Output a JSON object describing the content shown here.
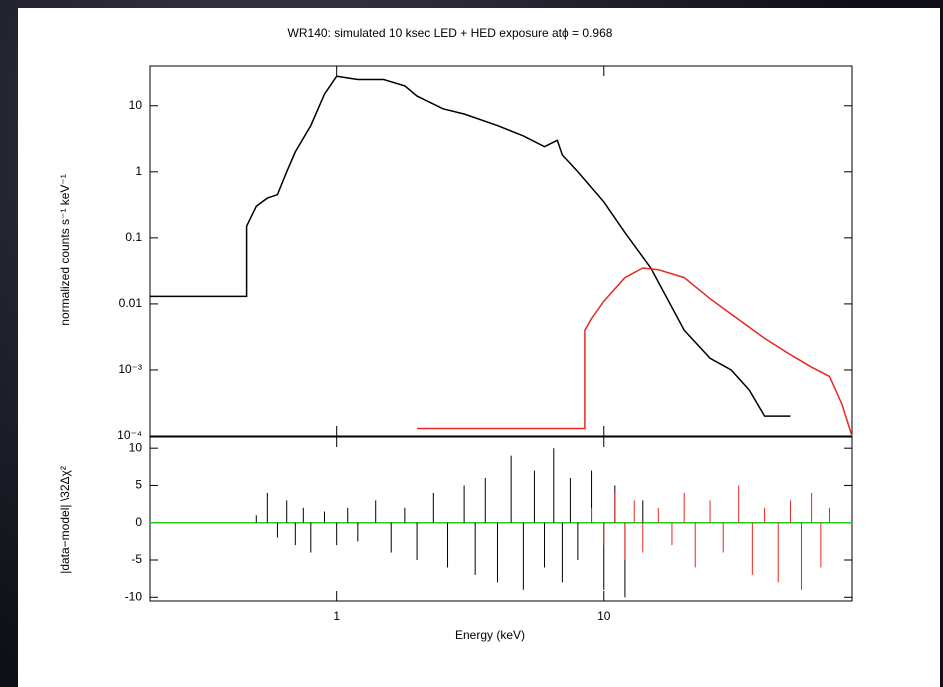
{
  "chart_data": [
    {
      "type": "line",
      "title": "WR140: simulated 10 ksec LED + HED exposure atϕ = 0.968",
      "y_label": "normalized counts s⁻¹ keV⁻¹",
      "xscale": "log",
      "yscale": "log",
      "xlim": [
        0.2,
        85
      ],
      "ylim": [
        0.0001,
        40
      ],
      "yticks": [
        10,
        1,
        0.1,
        0.01,
        {
          "value": 0.001,
          "label": "10⁻³"
        },
        {
          "value": 0.0001,
          "label": "10⁻⁴"
        }
      ],
      "series": [
        {
          "color": "#000000",
          "x": [
            0.2,
            0.46,
            0.46,
            0.5,
            0.55,
            0.6,
            0.65,
            0.7,
            0.8,
            0.9,
            1.0,
            1.2,
            1.5,
            1.8,
            2,
            2.5,
            3,
            4,
            5,
            6,
            6.7,
            7,
            8,
            10,
            12,
            15,
            20,
            25,
            30,
            35,
            40,
            50
          ],
          "values": [
            0.013,
            0.013,
            0.15,
            0.3,
            0.4,
            0.45,
            1,
            2,
            5,
            15,
            28,
            25,
            25,
            20,
            14,
            9,
            7.5,
            5,
            3.5,
            2.4,
            3,
            1.8,
            1,
            0.35,
            0.12,
            0.035,
            0.004,
            0.0015,
            0.001,
            0.0005,
            0.0002,
            0.0002
          ]
        },
        {
          "color": "#e8281e",
          "x": [
            2,
            8.5,
            8.5,
            9,
            10,
            12,
            14,
            16,
            20,
            25,
            30,
            40,
            50,
            60,
            70,
            78,
            85
          ],
          "values": [
            0.00013,
            0.00013,
            0.004,
            0.006,
            0.011,
            0.025,
            0.035,
            0.033,
            0.025,
            0.012,
            0.007,
            0.003,
            0.0017,
            0.0011,
            0.0008,
            0.0003,
            0.0001
          ]
        }
      ]
    },
    {
      "type": "scatter",
      "x_label": "Energy (keV)",
      "y_label": "|data−model| \\32Δχ²",
      "xscale": "log",
      "xlim": [
        0.2,
        85
      ],
      "ylim": [
        -10.5,
        11.5
      ],
      "xticks": [
        1,
        10
      ],
      "yticks": [
        10,
        5,
        0,
        -5,
        -10
      ],
      "hline": {
        "value": 0,
        "color": "#22cc22"
      },
      "series": [
        {
          "color": "#000000",
          "x": [
            0.5,
            0.55,
            0.6,
            0.65,
            0.7,
            0.75,
            0.8,
            0.9,
            1.0,
            1.1,
            1.2,
            1.4,
            1.6,
            1.8,
            2,
            2.3,
            2.6,
            3,
            3.3,
            3.6,
            4,
            4.5,
            5,
            5.5,
            6,
            6.5,
            7,
            7.5,
            8,
            9,
            10,
            11,
            12,
            14
          ],
          "values": [
            1,
            4,
            -2,
            3,
            -3,
            2,
            -4,
            1.5,
            -3,
            2,
            -2.5,
            3,
            -4,
            2,
            -5,
            4,
            -6,
            5,
            -7,
            6,
            -8,
            9,
            -9,
            7,
            -6,
            10,
            -8,
            6,
            -5,
            7,
            -9,
            5,
            -10,
            3
          ]
        },
        {
          "color": "#e8281e",
          "x": [
            9,
            10,
            11,
            12,
            13,
            14,
            16,
            18,
            20,
            22,
            25,
            28,
            32,
            36,
            40,
            45,
            50,
            55,
            60,
            65,
            70
          ],
          "values": [
            2,
            -3,
            4,
            -5,
            3,
            -4,
            2,
            -3,
            4,
            -6,
            3,
            -4,
            5,
            -7,
            2,
            -8,
            3,
            -9,
            4,
            -6,
            2
          ]
        }
      ]
    }
  ]
}
